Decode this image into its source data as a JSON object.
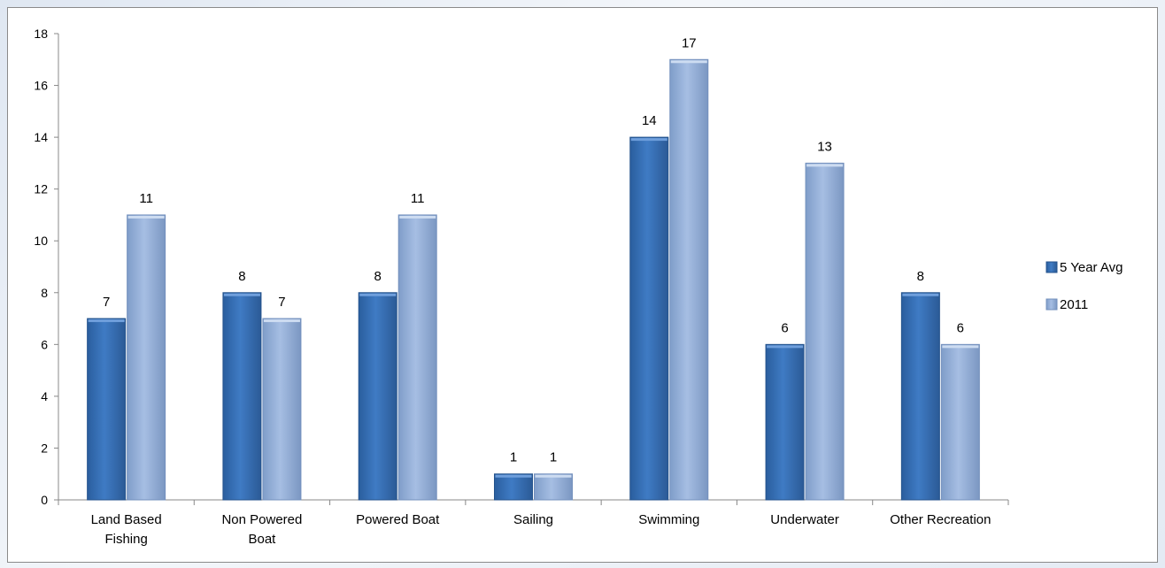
{
  "chart_data": {
    "type": "bar",
    "title": "",
    "xlabel": "",
    "ylabel": "",
    "categories": [
      "Land Based\nFishing",
      "Non Powered\nBoat",
      "Powered Boat",
      "Sailing",
      "Swimming",
      "Underwater",
      "Other Recreation"
    ],
    "series": [
      {
        "name": "5 Year Avg",
        "values": [
          7,
          8,
          8,
          1,
          14,
          6,
          8
        ],
        "color": "#3a72b8"
      },
      {
        "name": "2011",
        "values": [
          11,
          7,
          11,
          1,
          17,
          13,
          6
        ],
        "color": "#93aed8"
      }
    ],
    "ylim": [
      0,
      18
    ],
    "yticks": [
      0,
      2,
      4,
      6,
      8,
      10,
      12,
      14,
      16,
      18
    ],
    "grid": false,
    "legend": "right",
    "data_labels": true
  }
}
